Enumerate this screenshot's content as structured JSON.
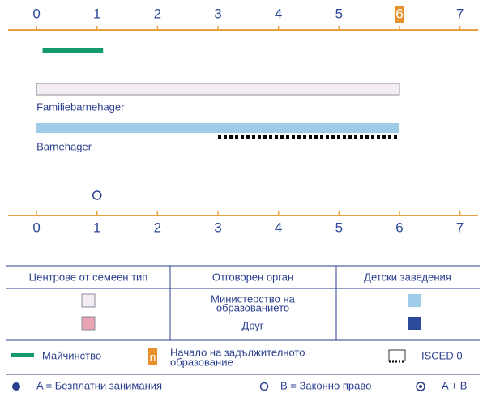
{
  "axis": {
    "xlim": [
      -0.47,
      7.3
    ],
    "ticks": [
      0,
      1,
      2,
      3,
      4,
      5,
      6,
      7
    ],
    "compulsory_start": 6
  },
  "maternity": {
    "start": 0.1,
    "end": 1.1
  },
  "rows": [
    {
      "label": "Familiebarnehager",
      "start": 0,
      "end": 6
    },
    {
      "label": "Barnehager",
      "start": 0,
      "end": 6,
      "isced": {
        "start": 3,
        "end": 6
      }
    }
  ],
  "entitlement": {
    "age": 1
  },
  "table": {
    "headers": [
      "Центрове от семеен тип",
      "Отговорен орган",
      "Детски заведения"
    ],
    "authorities": [
      [
        "Министерство на",
        "образованието"
      ],
      [
        "Друг"
      ]
    ]
  },
  "legend": {
    "maternity": "Майчинство",
    "compulsory_marker": "n",
    "compulsory": [
      "Начало на задължителното",
      "образование"
    ],
    "isced": "ISCED 0",
    "free": "A = Безплатни занимания",
    "legal": "B = Законно право",
    "both": "A + B"
  }
}
